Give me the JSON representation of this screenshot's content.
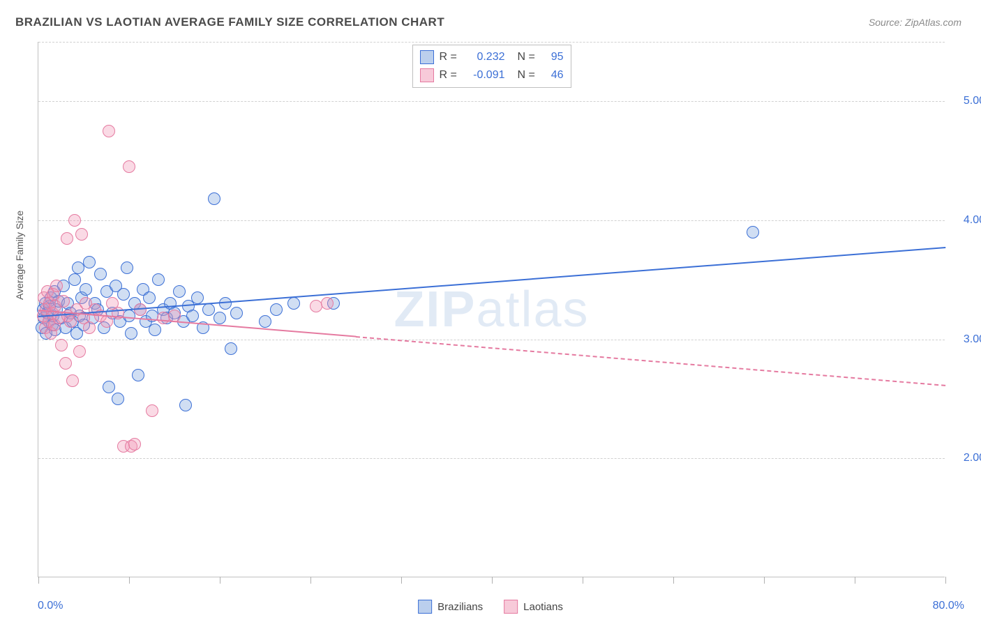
{
  "title": "BRAZILIAN VS LAOTIAN AVERAGE FAMILY SIZE CORRELATION CHART",
  "source": "Source: ZipAtlas.com",
  "watermark": {
    "bold": "ZIP",
    "rest": "atlas"
  },
  "ylabel": "Average Family Size",
  "chart": {
    "type": "scatter",
    "background_color": "#ffffff",
    "grid_color": "#d0d0d0",
    "xlim": [
      0,
      80
    ],
    "ylim": [
      1.0,
      5.5
    ],
    "yticks": [
      2.0,
      3.0,
      4.0,
      5.0
    ],
    "ytick_labels": [
      "2.00",
      "3.00",
      "4.00",
      "5.00"
    ],
    "xticks": [
      0,
      8,
      16,
      24,
      32,
      40,
      48,
      56,
      64,
      72,
      80
    ],
    "x_start_label": "0.0%",
    "x_end_label": "80.0%",
    "marker_radius": 9,
    "marker_border_width": 1.5,
    "marker_fill_opacity": 0.35,
    "trend_line_width": 2.5,
    "series": [
      {
        "name": "Brazilians",
        "color_stroke": "#3b6fd6",
        "color_fill": "rgba(120,160,220,0.35)",
        "R": "0.232",
        "N": "95",
        "trend": {
          "x1": 0,
          "y1": 3.2,
          "x2": 80,
          "y2": 3.78,
          "dash_after_x": null
        },
        "points": [
          [
            0.3,
            3.1
          ],
          [
            0.4,
            3.25
          ],
          [
            0.5,
            3.18
          ],
          [
            0.6,
            3.3
          ],
          [
            0.7,
            3.05
          ],
          [
            0.8,
            3.22
          ],
          [
            0.9,
            3.15
          ],
          [
            1.0,
            3.28
          ],
          [
            1.1,
            3.35
          ],
          [
            1.2,
            3.12
          ],
          [
            1.3,
            3.2
          ],
          [
            1.4,
            3.4
          ],
          [
            1.5,
            3.08
          ],
          [
            1.6,
            3.25
          ],
          [
            1.8,
            3.32
          ],
          [
            2.0,
            3.18
          ],
          [
            2.2,
            3.45
          ],
          [
            2.4,
            3.1
          ],
          [
            2.6,
            3.3
          ],
          [
            2.8,
            3.22
          ],
          [
            3.0,
            3.15
          ],
          [
            3.2,
            3.5
          ],
          [
            3.4,
            3.05
          ],
          [
            3.5,
            3.6
          ],
          [
            3.6,
            3.2
          ],
          [
            3.8,
            3.35
          ],
          [
            4.0,
            3.12
          ],
          [
            4.2,
            3.42
          ],
          [
            4.5,
            3.65
          ],
          [
            4.8,
            3.18
          ],
          [
            5.0,
            3.3
          ],
          [
            5.2,
            3.25
          ],
          [
            5.5,
            3.55
          ],
          [
            5.8,
            3.1
          ],
          [
            6.0,
            3.4
          ],
          [
            6.2,
            2.6
          ],
          [
            6.5,
            3.22
          ],
          [
            6.8,
            3.45
          ],
          [
            7.0,
            2.5
          ],
          [
            7.2,
            3.15
          ],
          [
            7.5,
            3.38
          ],
          [
            7.8,
            3.6
          ],
          [
            8.0,
            3.2
          ],
          [
            8.2,
            3.05
          ],
          [
            8.5,
            3.3
          ],
          [
            8.8,
            2.7
          ],
          [
            9.0,
            3.25
          ],
          [
            9.2,
            3.42
          ],
          [
            9.5,
            3.15
          ],
          [
            9.8,
            3.35
          ],
          [
            10.0,
            3.2
          ],
          [
            10.3,
            3.08
          ],
          [
            10.6,
            3.5
          ],
          [
            11.0,
            3.25
          ],
          [
            11.3,
            3.18
          ],
          [
            11.6,
            3.3
          ],
          [
            12.0,
            3.22
          ],
          [
            12.4,
            3.4
          ],
          [
            12.8,
            3.15
          ],
          [
            13.0,
            2.45
          ],
          [
            13.2,
            3.28
          ],
          [
            13.6,
            3.2
          ],
          [
            14.0,
            3.35
          ],
          [
            14.5,
            3.1
          ],
          [
            15.0,
            3.25
          ],
          [
            15.5,
            4.18
          ],
          [
            16.0,
            3.18
          ],
          [
            16.5,
            3.3
          ],
          [
            17.0,
            2.92
          ],
          [
            17.5,
            3.22
          ],
          [
            20.0,
            3.15
          ],
          [
            21.0,
            3.25
          ],
          [
            22.5,
            3.3
          ],
          [
            26.0,
            3.3
          ],
          [
            63.0,
            3.9
          ]
        ]
      },
      {
        "name": "Laotians",
        "color_stroke": "#e57aa0",
        "color_fill": "rgba(240,150,180,0.35)",
        "R": "-0.091",
        "N": "46",
        "trend": {
          "x1": 0,
          "y1": 3.25,
          "x2": 80,
          "y2": 2.62,
          "dash_after_x": 28
        },
        "points": [
          [
            0.4,
            3.2
          ],
          [
            0.5,
            3.35
          ],
          [
            0.6,
            3.1
          ],
          [
            0.7,
            3.25
          ],
          [
            0.8,
            3.4
          ],
          [
            0.9,
            3.15
          ],
          [
            1.0,
            3.3
          ],
          [
            1.1,
            3.05
          ],
          [
            1.2,
            3.22
          ],
          [
            1.3,
            3.38
          ],
          [
            1.4,
            3.12
          ],
          [
            1.5,
            3.28
          ],
          [
            1.6,
            3.45
          ],
          [
            1.8,
            3.18
          ],
          [
            2.0,
            2.95
          ],
          [
            2.2,
            3.32
          ],
          [
            2.4,
            2.8
          ],
          [
            2.5,
            3.85
          ],
          [
            2.6,
            3.2
          ],
          [
            2.8,
            3.15
          ],
          [
            3.0,
            2.65
          ],
          [
            3.2,
            4.0
          ],
          [
            3.4,
            3.25
          ],
          [
            3.6,
            2.9
          ],
          [
            3.8,
            3.88
          ],
          [
            4.0,
            3.18
          ],
          [
            4.2,
            3.3
          ],
          [
            4.5,
            3.1
          ],
          [
            5.0,
            3.25
          ],
          [
            5.5,
            3.2
          ],
          [
            6.0,
            3.15
          ],
          [
            6.2,
            4.75
          ],
          [
            6.5,
            3.3
          ],
          [
            7.0,
            3.22
          ],
          [
            7.5,
            2.1
          ],
          [
            8.0,
            4.45
          ],
          [
            8.2,
            2.1
          ],
          [
            8.5,
            2.12
          ],
          [
            9.0,
            3.25
          ],
          [
            10.0,
            2.4
          ],
          [
            11.0,
            3.18
          ],
          [
            12.0,
            3.2
          ],
          [
            24.5,
            3.28
          ],
          [
            25.5,
            3.3
          ]
        ]
      }
    ]
  },
  "legend_top": {
    "rows": [
      {
        "swatch_fill": "rgba(120,160,220,0.5)",
        "swatch_stroke": "#3b6fd6",
        "r_label": "R =",
        "r_value": "0.232",
        "n_label": "N =",
        "n_value": "95"
      },
      {
        "swatch_fill": "rgba(240,150,180,0.5)",
        "swatch_stroke": "#e57aa0",
        "r_label": "R =",
        "r_value": "-0.091",
        "n_label": "N =",
        "n_value": "46"
      }
    ]
  },
  "legend_bottom": {
    "items": [
      {
        "swatch_fill": "rgba(120,160,220,0.5)",
        "swatch_stroke": "#3b6fd6",
        "label": "Brazilians"
      },
      {
        "swatch_fill": "rgba(240,150,180,0.5)",
        "swatch_stroke": "#e57aa0",
        "label": "Laotians"
      }
    ]
  }
}
